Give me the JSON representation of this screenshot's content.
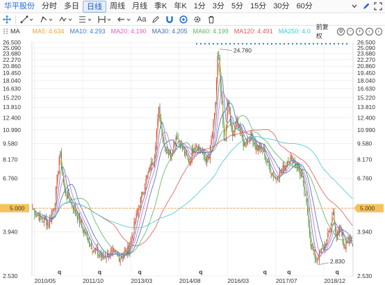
{
  "tabbar": {
    "stock_name": "华平股份",
    "tabs": [
      "分时",
      "多日",
      "日线",
      "周线",
      "月线",
      "季K",
      "年K",
      "1分",
      "3分",
      "5分",
      "15分",
      "30分",
      "60分"
    ],
    "active_tab": "日线"
  },
  "toolbar": {
    "text_tool": "Aa",
    "icons": [
      "crosshair-icon",
      "line-tool-icon",
      "path-tool-icon",
      "wave-tool-icon",
      "fib-tool-icon",
      "interval-tool-icon",
      "arrow-tool-icon",
      "text-tool-icon",
      "pen-tool-icon",
      "magnet-icon",
      "eye-icon",
      "settings-icon",
      "delete-icon"
    ]
  },
  "mabar": {
    "toggle_label": "MA",
    "items": [
      {
        "label": "MA5: 4.634",
        "color": "#e8a33a"
      },
      {
        "label": "MA10: 4.293",
        "color": "#3d7ad6"
      },
      {
        "label": "MA20: 4.190",
        "color": "#d860c8"
      },
      {
        "label": "MA30: 4.205",
        "color": "#3b6fb2"
      },
      {
        "label": "MA60: 4.199",
        "color": "#5ab25a"
      },
      {
        "label": "MA120: 4.491",
        "color": "#e05757"
      },
      {
        "label": "MA250: 4.0",
        "color": "#3ec8d8"
      }
    ],
    "adjust_mode": "前复权"
  },
  "chart_data": {
    "type": "candlestick",
    "y_scale": "log",
    "yticks": [
      "26.500",
      "25.090",
      "23.680",
      "22.270",
      "20.860",
      "19.450",
      "18.040",
      "16.630",
      "15.220",
      "13.810",
      "12.400",
      "10.990",
      "9.580",
      "8.170",
      "6.760",
      "5.000",
      "3.940",
      "2.530"
    ],
    "xticks": [
      "2010/05",
      "2011/10",
      "2013/03",
      "2014/08",
      "2016/03",
      "2017/07",
      "2018/12"
    ],
    "current_price": "5.000",
    "max_label": "24.780",
    "min_label": "2.830",
    "price_path": [
      [
        0,
        5.0
      ],
      [
        0.02,
        4.6
      ],
      [
        0.05,
        4.3
      ],
      [
        0.07,
        5.3
      ],
      [
        0.085,
        8.8
      ],
      [
        0.1,
        6.0
      ],
      [
        0.13,
        5.0
      ],
      [
        0.16,
        4.0
      ],
      [
        0.19,
        3.3
      ],
      [
        0.22,
        3.05
      ],
      [
        0.25,
        3.2
      ],
      [
        0.27,
        3.05
      ],
      [
        0.3,
        3.3
      ],
      [
        0.32,
        4.3
      ],
      [
        0.34,
        5.6
      ],
      [
        0.36,
        7.0
      ],
      [
        0.38,
        8.4
      ],
      [
        0.395,
        13.6
      ],
      [
        0.41,
        9.5
      ],
      [
        0.43,
        8.5
      ],
      [
        0.45,
        10.5
      ],
      [
        0.47,
        9.0
      ],
      [
        0.49,
        8.0
      ],
      [
        0.51,
        9.7
      ],
      [
        0.53,
        8.7
      ],
      [
        0.55,
        8.0
      ],
      [
        0.57,
        13.0
      ],
      [
        0.58,
        24.78
      ],
      [
        0.59,
        15.0
      ],
      [
        0.6,
        9.0
      ],
      [
        0.61,
        15.0
      ],
      [
        0.625,
        10.0
      ],
      [
        0.64,
        12.2
      ],
      [
        0.66,
        9.5
      ],
      [
        0.68,
        10.5
      ],
      [
        0.7,
        9.2
      ],
      [
        0.72,
        9.0
      ],
      [
        0.74,
        7.5
      ],
      [
        0.76,
        6.8
      ],
      [
        0.78,
        7.3
      ],
      [
        0.8,
        8.3
      ],
      [
        0.82,
        8.0
      ],
      [
        0.84,
        7.0
      ],
      [
        0.86,
        4.8
      ],
      [
        0.87,
        3.5
      ],
      [
        0.885,
        3.0
      ],
      [
        0.9,
        3.2
      ],
      [
        0.92,
        3.6
      ],
      [
        0.94,
        4.8
      ],
      [
        0.95,
        3.6
      ],
      [
        0.96,
        4.2
      ],
      [
        0.975,
        3.4
      ],
      [
        0.99,
        3.6
      ]
    ],
    "ma_series": [
      {
        "name": "MA5",
        "color": "#e8a33a"
      },
      {
        "name": "MA10",
        "color": "#3d7ad6"
      },
      {
        "name": "MA20",
        "color": "#d860c8"
      },
      {
        "name": "MA30",
        "color": "#3b6fb2"
      },
      {
        "name": "MA60",
        "color": "#5ab25a"
      },
      {
        "name": "MA120",
        "color": "#e05757"
      },
      {
        "name": "MA250",
        "color": "#3ec8d8"
      }
    ],
    "event_marker": "q",
    "colors": {
      "up": "#e03a3a",
      "down": "#2e9e4e",
      "price_line": "#f0a860",
      "price_label_bg": "#f6c35a"
    }
  }
}
